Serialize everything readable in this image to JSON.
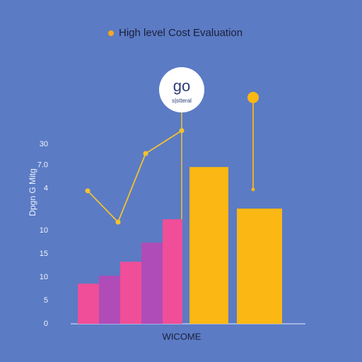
{
  "chart_data": {
    "type": "bar",
    "title": "High level Cost Evaluation",
    "title_marker_color": "#f5a623",
    "logo": {
      "text": "go",
      "subtext": "s|stteral"
    },
    "y_label": "Dpgn G Mitg",
    "x_label": "WICOME",
    "categories": [
      null,
      null,
      null,
      null,
      null,
      null,
      null
    ],
    "values": [
      8.6,
      10.3,
      13.3,
      17.4,
      22.4,
      33.6,
      24.7
    ],
    "colors": [
      "#f04e98",
      "#b04cb8",
      "#f04e98",
      "#b04cb8",
      "#f04e98",
      "#fbb713",
      "#fbb713"
    ],
    "line": {
      "color": "#f2c230",
      "values": [
        28.5,
        21.8,
        36.5,
        41.4
      ]
    },
    "pin": {
      "color": "#fbb713",
      "value": 48.5
    },
    "ylim": [
      0,
      50
    ],
    "yticks": [
      0,
      5,
      10,
      15,
      {
        "value": 20,
        "label": "10"
      },
      {
        "value": 29,
        "label": "4"
      },
      {
        "value": 34,
        "label": "7.0"
      },
      {
        "value": 38.5,
        "label": "30"
      }
    ]
  }
}
